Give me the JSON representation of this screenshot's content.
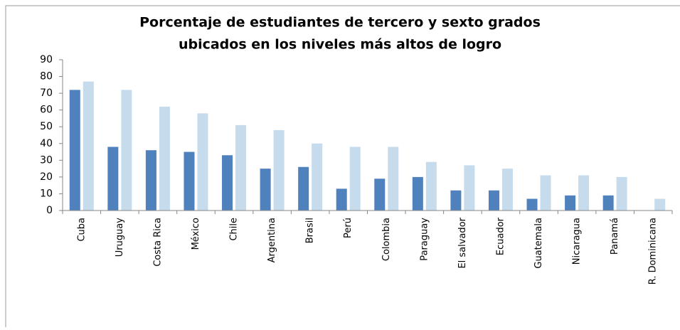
{
  "chart_data": {
    "type": "bar",
    "title": [
      "Porcentaje de estudiantes de tercero y sexto grados",
      "ubicados en los niveles más altos de logro"
    ],
    "categories": [
      "Cuba",
      "Uruguay",
      "Costa Rica",
      "México",
      "Chile",
      "Argentina",
      "Brasil",
      "Perú",
      "Colombia",
      "Paraguay",
      "El salvador",
      "Ecuador",
      "Guatemala",
      "Nicaragua",
      "Panamá",
      "R. Dominicana"
    ],
    "series": [
      {
        "color": "#4f81bd",
        "values": [
          72,
          38,
          36,
          35,
          33,
          25,
          26,
          13,
          19,
          20,
          12,
          12,
          7,
          9,
          9,
          null
        ]
      },
      {
        "color": "#c6dbec",
        "values": [
          77,
          72,
          62,
          58,
          51,
          48,
          40,
          38,
          38,
          29,
          27,
          25,
          21,
          21,
          20,
          7
        ]
      }
    ],
    "ylim": [
      0,
      90
    ],
    "yticks": [
      0,
      10,
      20,
      30,
      40,
      50,
      60,
      70,
      80,
      90
    ]
  }
}
